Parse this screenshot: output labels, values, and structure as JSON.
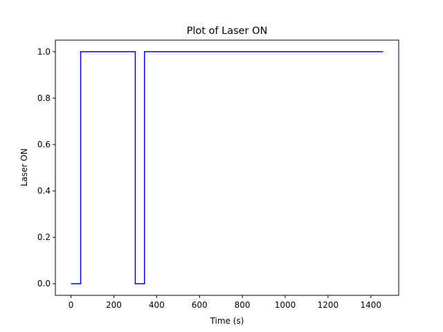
{
  "chart_data": {
    "type": "line",
    "title": "Plot of Laser ON",
    "xlabel": "Time (s)",
    "ylabel": "Laser ON",
    "xlim": [
      -73,
      1530
    ],
    "ylim": [
      -0.05,
      1.05
    ],
    "x_ticks": [
      0,
      200,
      400,
      600,
      800,
      1000,
      1200,
      1400
    ],
    "x_tick_labels": [
      "0",
      "200",
      "400",
      "600",
      "800",
      "1000",
      "1200",
      "1400"
    ],
    "y_ticks": [
      0.0,
      0.2,
      0.4,
      0.6,
      0.8,
      1.0
    ],
    "y_tick_labels": [
      "0.0",
      "0.2",
      "0.4",
      "0.6",
      "0.8",
      "1.0"
    ],
    "grid": false,
    "line_color": "#0000ff",
    "step": "post",
    "series": [
      {
        "x": [
          0,
          45,
          300,
          343,
          1457
        ],
        "y": [
          0,
          1,
          0,
          1,
          1
        ]
      }
    ]
  }
}
